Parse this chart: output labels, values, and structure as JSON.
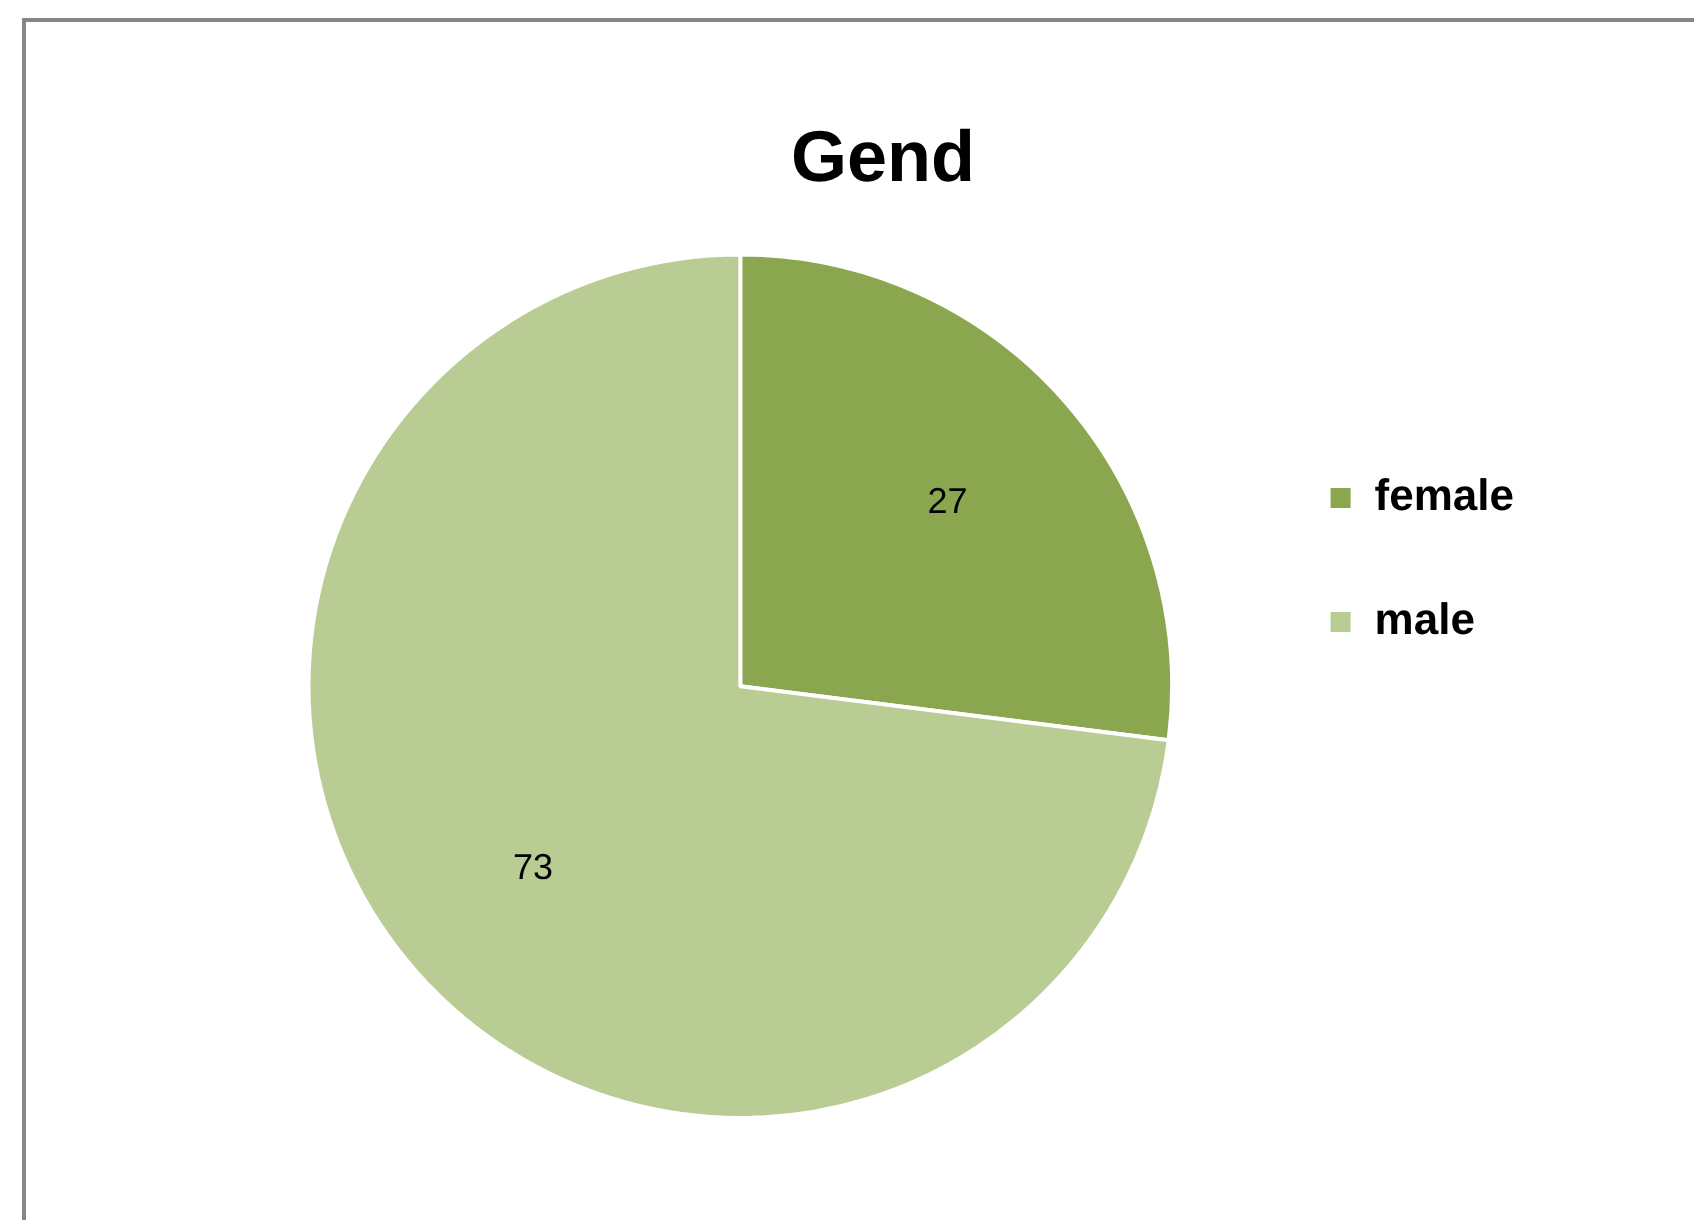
{
  "chart_data": {
    "type": "pie",
    "title": "Gend",
    "categories": [
      "female",
      "male"
    ],
    "values": [
      27,
      73
    ],
    "colors": [
      "#8aa64f",
      "#b8cc94"
    ],
    "data_labels": true,
    "legend": "right"
  }
}
